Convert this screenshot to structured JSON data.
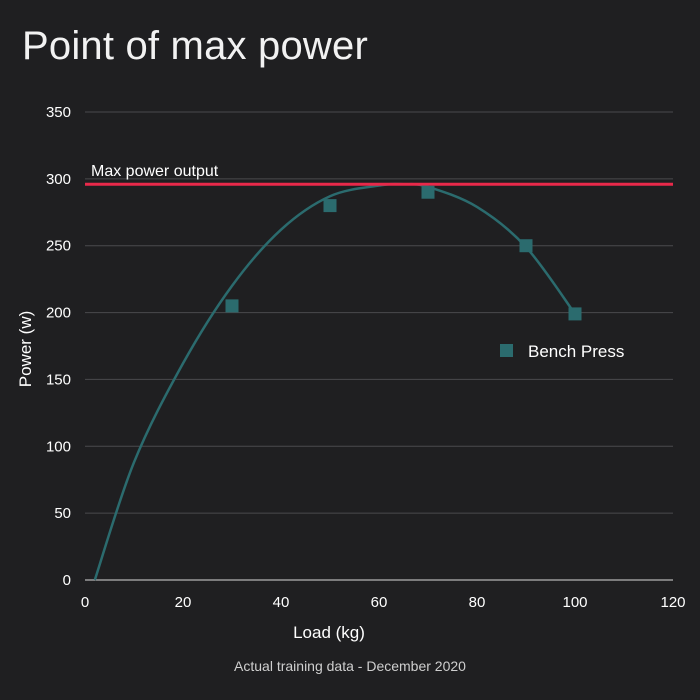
{
  "chart_data": {
    "type": "scatter",
    "title": "Point of max power",
    "subtitle": "Actual training data - December 2020",
    "xlabel": "Load (kg)",
    "ylabel": "Power (w)",
    "xlim": [
      0,
      120
    ],
    "ylim": [
      0,
      350
    ],
    "x_ticks": [
      0,
      20,
      40,
      60,
      80,
      100,
      120
    ],
    "y_ticks": [
      0,
      50,
      100,
      150,
      200,
      250,
      300,
      350
    ],
    "grid": "horizontal",
    "legend_position": "right",
    "series": [
      {
        "name": "Bench Press",
        "marker": "square",
        "color": "#2b6b6e",
        "points": [
          {
            "x": 30,
            "y": 205
          },
          {
            "x": 50,
            "y": 280
          },
          {
            "x": 70,
            "y": 290
          },
          {
            "x": 90,
            "y": 250
          },
          {
            "x": 100,
            "y": 199
          }
        ]
      }
    ],
    "trend_curve": {
      "color": "#2b6b6e",
      "points": [
        {
          "x": 2,
          "y": 0
        },
        {
          "x": 10,
          "y": 88
        },
        {
          "x": 20,
          "y": 162
        },
        {
          "x": 30,
          "y": 220
        },
        {
          "x": 40,
          "y": 262
        },
        {
          "x": 50,
          "y": 287
        },
        {
          "x": 60,
          "y": 295
        },
        {
          "x": 65,
          "y": 296
        },
        {
          "x": 70,
          "y": 294
        },
        {
          "x": 80,
          "y": 279
        },
        {
          "x": 90,
          "y": 249
        },
        {
          "x": 100,
          "y": 199
        }
      ]
    },
    "reference_line": {
      "label": "Max power output",
      "y": 296,
      "color": "#e8294a"
    }
  }
}
